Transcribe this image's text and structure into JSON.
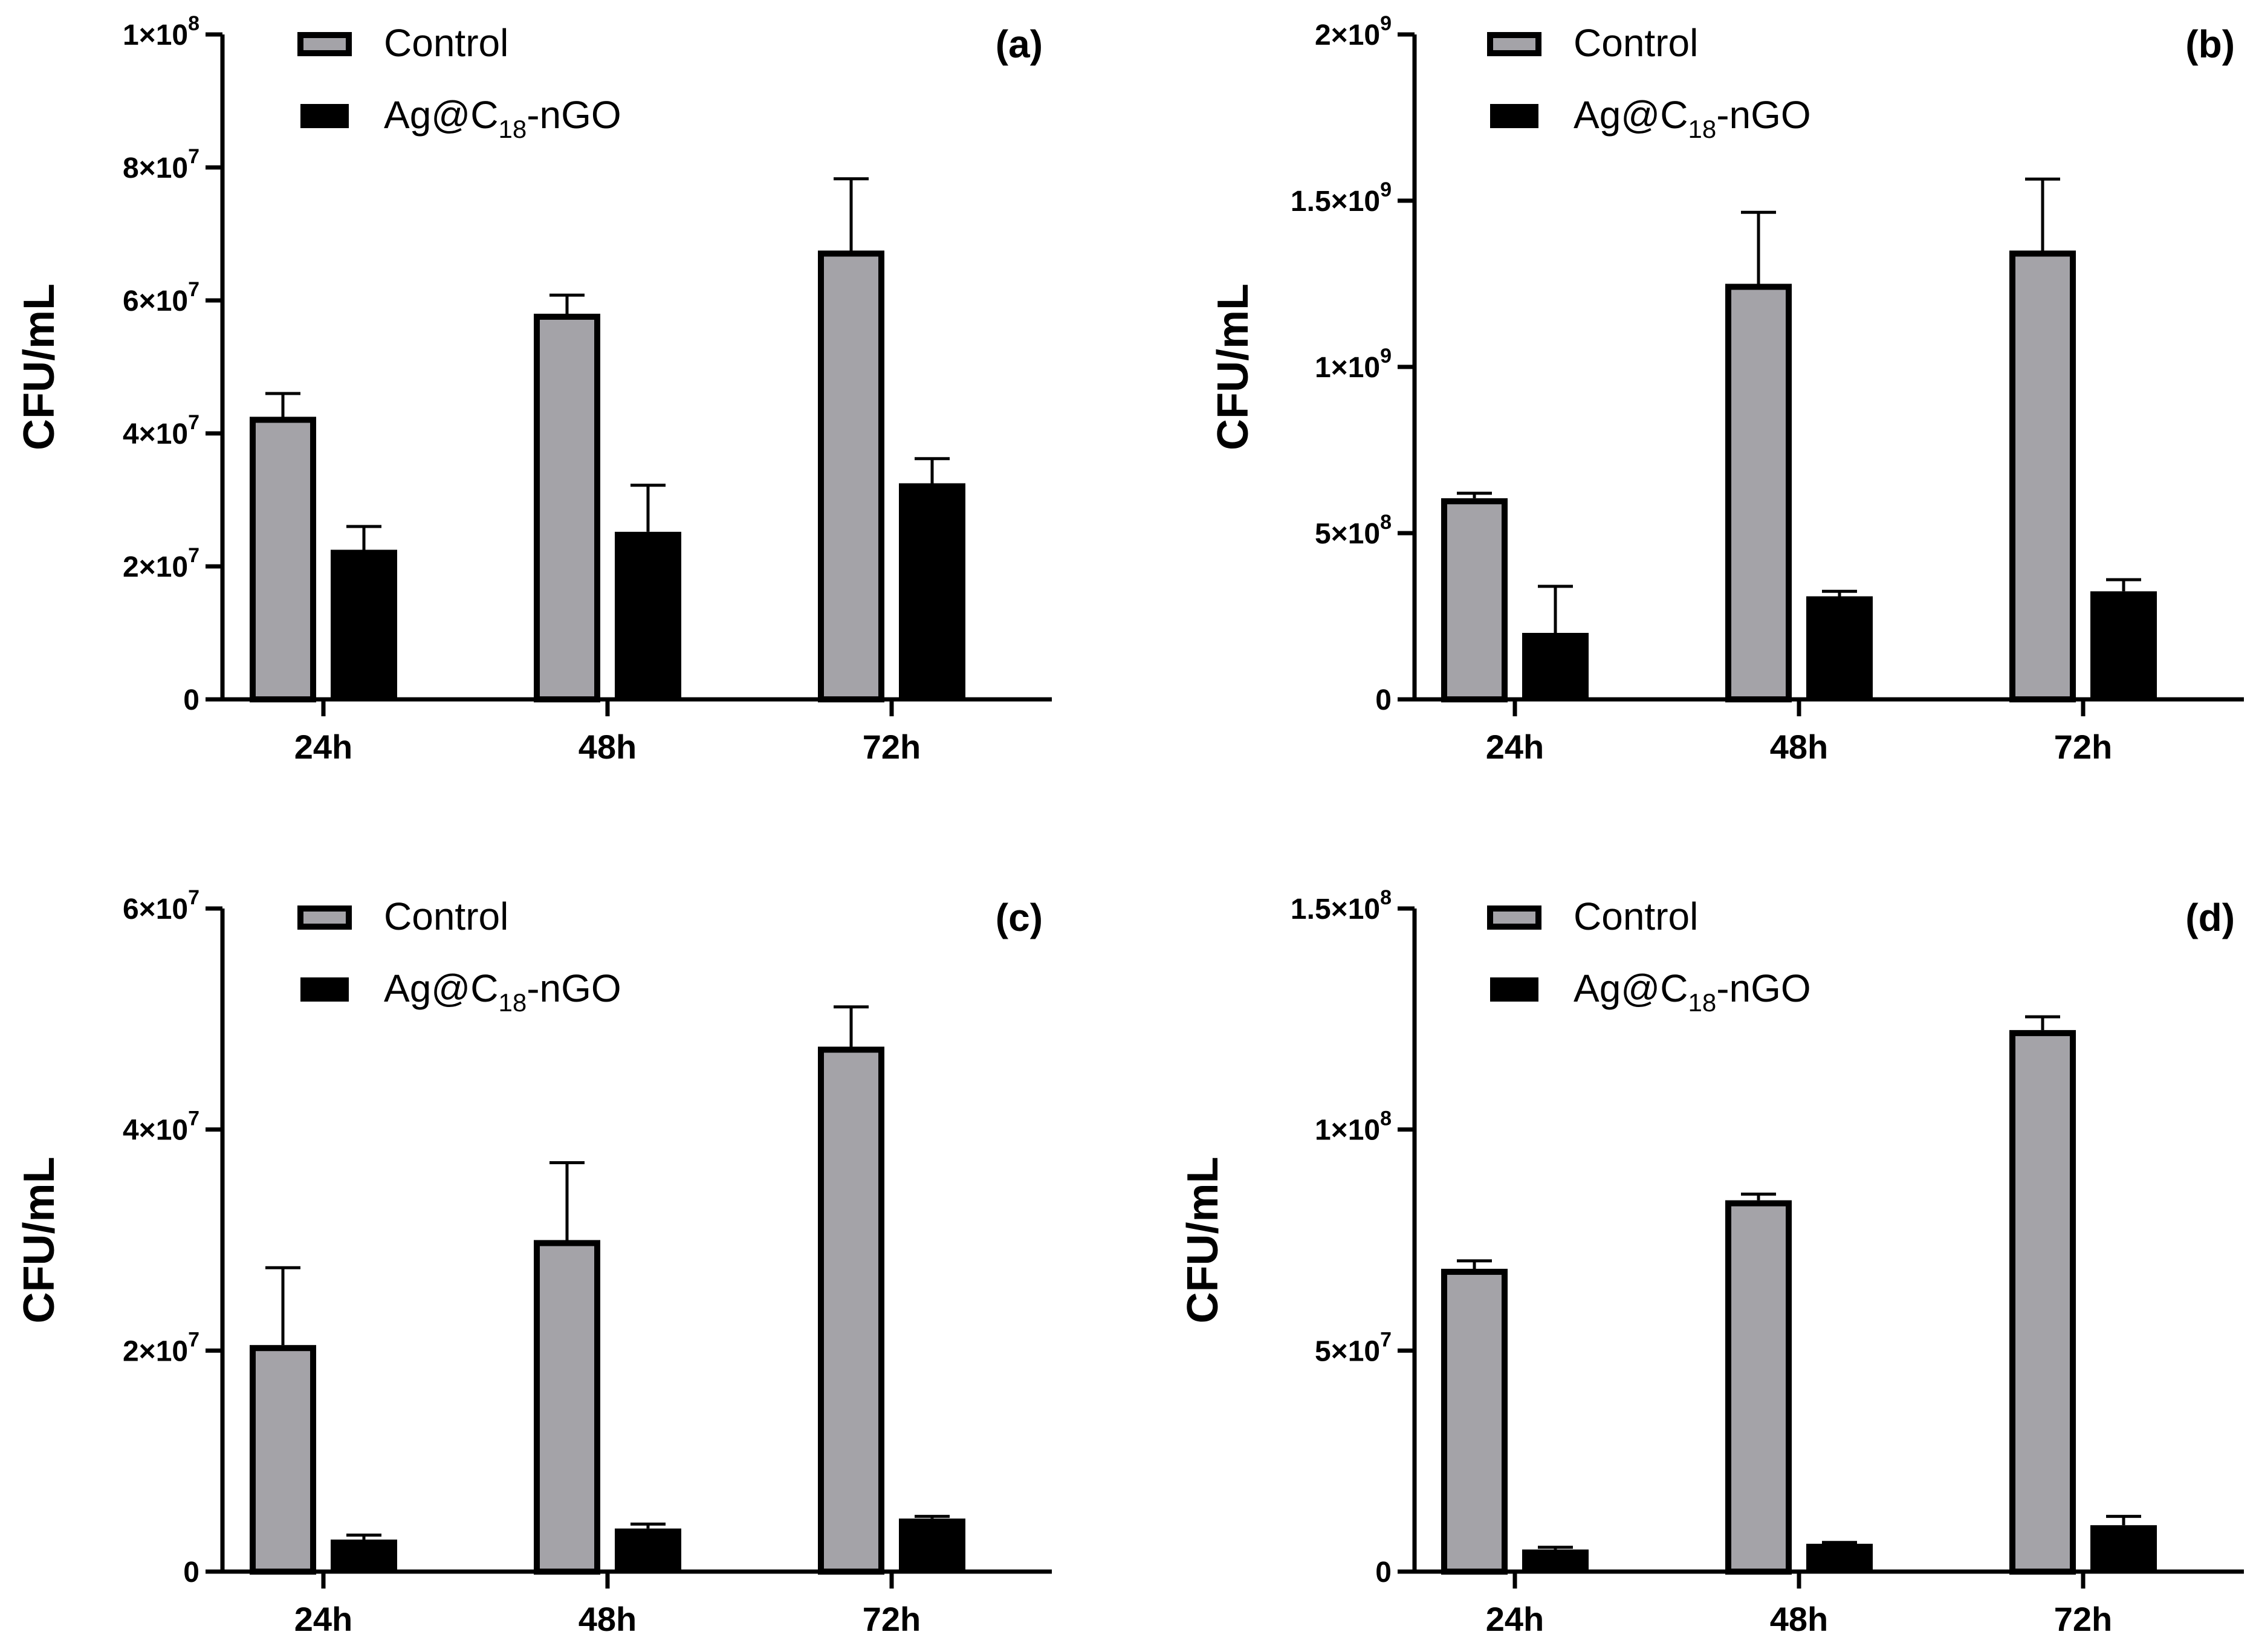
{
  "chart_data": [
    {
      "type": "bar",
      "panel_label": "(a)",
      "ylabel": "CFU/mL",
      "ylim": [
        0,
        100000000
      ],
      "yticks": [
        {
          "value": 0,
          "label": "0"
        },
        {
          "value": 20000000,
          "mant": "2",
          "exp": "7"
        },
        {
          "value": 40000000,
          "mant": "4",
          "exp": "7"
        },
        {
          "value": 60000000,
          "mant": "6",
          "exp": "7"
        },
        {
          "value": 80000000,
          "mant": "8",
          "exp": "7"
        },
        {
          "value": 100000000,
          "mant": "1",
          "exp": "8"
        }
      ],
      "categories": [
        "24h",
        "48h",
        "72h"
      ],
      "series": [
        {
          "name": "Control",
          "color": "#a4a3a8",
          "values": [
            42500000,
            58000000,
            67500000
          ],
          "errors": [
            3500000,
            2800000,
            10800000
          ]
        },
        {
          "name": "Ag@C18-nGO",
          "color": "#000000",
          "values": [
            22500000,
            25200000,
            32500000
          ],
          "errors": [
            3500000,
            7000000,
            3700000
          ]
        }
      ],
      "legend": {
        "placement": "top-left",
        "entries": [
          {
            "text": "Control"
          },
          {
            "text": "Ag@C",
            "sub": "18",
            "tail": "-nGO"
          }
        ]
      }
    },
    {
      "type": "bar",
      "panel_label": "(b)",
      "ylabel": "CFU/mL",
      "ylim": [
        0,
        2000000000
      ],
      "yticks": [
        {
          "value": 0,
          "label": "0"
        },
        {
          "value": 500000000,
          "mant": "5",
          "exp": "8"
        },
        {
          "value": 1000000000,
          "mant": "1",
          "exp": "9"
        },
        {
          "value": 1500000000,
          "mant": "1.5",
          "exp": "9"
        },
        {
          "value": 2000000000,
          "mant": "2",
          "exp": "9"
        }
      ],
      "categories": [
        "24h",
        "48h",
        "72h"
      ],
      "series": [
        {
          "name": "Control",
          "color": "#a4a3a8",
          "values": [
            605000000,
            1250000000,
            1350000000
          ],
          "errors": [
            15000000,
            215000000,
            215000000
          ]
        },
        {
          "name": "Ag@C18-nGO",
          "color": "#000000",
          "values": [
            200000000,
            310000000,
            325000000
          ],
          "errors": [
            140000000,
            15000000,
            35000000
          ]
        }
      ],
      "legend": {
        "placement": "top-left",
        "entries": [
          {
            "text": "Control"
          },
          {
            "text": "Ag@C",
            "sub": "18",
            "tail": "-nGO"
          }
        ]
      }
    },
    {
      "type": "bar",
      "panel_label": "(c)",
      "ylabel": "CFU/mL",
      "ylim": [
        0,
        60000000
      ],
      "yticks": [
        {
          "value": 0,
          "label": "0"
        },
        {
          "value": 20000000,
          "mant": "2",
          "exp": "7"
        },
        {
          "value": 40000000,
          "mant": "4",
          "exp": "7"
        },
        {
          "value": 60000000,
          "mant": "6",
          "exp": "7"
        }
      ],
      "categories": [
        "24h",
        "48h",
        "72h"
      ],
      "series": [
        {
          "name": "Control",
          "color": "#a4a3a8",
          "values": [
            20500000,
            30000000,
            47500000
          ],
          "errors": [
            7000000,
            7000000,
            3600000
          ]
        },
        {
          "name": "Ag@C18-nGO",
          "color": "#000000",
          "values": [
            2900000,
            3900000,
            4800000
          ],
          "errors": [
            400000,
            400000,
            200000
          ]
        }
      ],
      "legend": {
        "placement": "top-left",
        "entries": [
          {
            "text": "Control"
          },
          {
            "text": "Ag@C",
            "sub": "18",
            "tail": "-nGO"
          }
        ]
      }
    },
    {
      "type": "bar",
      "panel_label": "(d)",
      "ylabel": "CFU/mL",
      "ylim": [
        0,
        150000000
      ],
      "yticks": [
        {
          "value": 0,
          "label": "0"
        },
        {
          "value": 50000000,
          "mant": "5",
          "exp": "7"
        },
        {
          "value": 100000000,
          "mant": "1",
          "exp": "8"
        },
        {
          "value": 150000000,
          "mant": "1.5",
          "exp": "8"
        }
      ],
      "categories": [
        "24h",
        "48h",
        "72h"
      ],
      "series": [
        {
          "name": "Control",
          "color": "#a4a3a8",
          "values": [
            68500000,
            84000000,
            122500000
          ],
          "errors": [
            1800000,
            1400000,
            3000000
          ]
        },
        {
          "name": "Ag@C18-nGO",
          "color": "#000000",
          "values": [
            5000000,
            6300000,
            10500000
          ],
          "errors": [
            500000,
            300000,
            2000000
          ]
        }
      ],
      "legend": {
        "placement": "top-left",
        "entries": [
          {
            "text": "Control"
          },
          {
            "text": "Ag@C",
            "sub": "18",
            "tail": "-nGO"
          }
        ]
      }
    }
  ]
}
